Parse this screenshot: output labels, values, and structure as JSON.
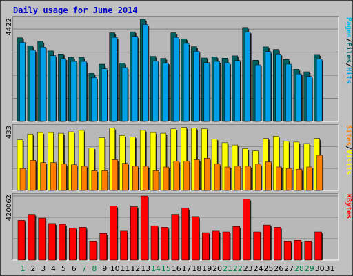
{
  "title": "Daily usage for June 2014",
  "colors": {
    "title": "#0000cc",
    "background": "#c0c0c0",
    "panel": "#b8b8b8",
    "grid": "#808080",
    "hits": "#00a0e8",
    "files": "#006060",
    "pages": "#00c0e0",
    "visits": "#ffff00",
    "sites": "#ff8000",
    "kbytes": "#ff0000",
    "day_normal": "#000000",
    "day_weekend": "#008040"
  },
  "chart_data": [
    {
      "type": "bar",
      "panel": "top",
      "ymax_label": "4422",
      "ylim": [
        0,
        4422
      ],
      "legend": [
        {
          "text": "Pages",
          "color": "#00c0e0"
        },
        {
          "text": "/",
          "color": "#000000"
        },
        {
          "text": "Files",
          "color": "#006060"
        },
        {
          "text": "/",
          "color": "#000000"
        },
        {
          "text": "Hits",
          "color": "#00a0e8"
        }
      ],
      "series": [
        {
          "name": "Hits",
          "values": [
            3420,
            3080,
            3220,
            2850,
            2720,
            2600,
            2600,
            1900,
            2280,
            3640,
            2330,
            3680,
            4200,
            2620,
            2530,
            3640,
            3380,
            3040,
            2550,
            2600,
            2540,
            2640,
            3870,
            2450,
            3030,
            2920,
            2480,
            2060,
            1950,
            2700
          ]
        },
        {
          "name": "Files",
          "values": [
            3620,
            3280,
            3470,
            3050,
            2920,
            2780,
            2780,
            2080,
            2480,
            3840,
            2530,
            3880,
            4422,
            2820,
            2730,
            3840,
            3580,
            3240,
            2750,
            2800,
            2740,
            2840,
            4070,
            2650,
            3230,
            3120,
            2680,
            2260,
            2150,
            2900
          ]
        }
      ]
    },
    {
      "type": "bar",
      "panel": "middle",
      "ymax_label": "433",
      "ylim": [
        0,
        433
      ],
      "legend": [
        {
          "text": "Sites",
          "color": "#ff8000"
        },
        {
          "text": "/",
          "color": "#000000"
        },
        {
          "text": "Visits",
          "color": "#ffff00"
        }
      ],
      "series": [
        {
          "name": "Visits",
          "values": [
            345,
            385,
            395,
            395,
            390,
            400,
            410,
            290,
            360,
            425,
            375,
            365,
            410,
            395,
            390,
            420,
            430,
            425,
            420,
            350,
            325,
            310,
            285,
            270,
            355,
            370,
            335,
            330,
            320,
            355
          ]
        },
        {
          "name": "Sites",
          "values": [
            150,
            205,
            190,
            190,
            180,
            175,
            165,
            135,
            135,
            210,
            185,
            165,
            165,
            135,
            160,
            200,
            200,
            210,
            220,
            180,
            160,
            165,
            165,
            180,
            195,
            160,
            150,
            145,
            160,
            240
          ]
        }
      ]
    },
    {
      "type": "bar",
      "panel": "bottom",
      "ymax_label": "420062",
      "ylim": [
        0,
        420062
      ],
      "legend": [
        {
          "text": "KBytes",
          "color": "#ff0000"
        }
      ],
      "series": [
        {
          "name": "KBytes",
          "values": [
            260000,
            300000,
            275000,
            240000,
            235000,
            210000,
            215000,
            125000,
            175000,
            355000,
            190000,
            350000,
            420062,
            225000,
            215000,
            300000,
            340000,
            285000,
            180000,
            190000,
            185000,
            220000,
            400000,
            185000,
            230000,
            215000,
            125000,
            130000,
            125000,
            185000
          ]
        }
      ]
    }
  ],
  "days": [
    {
      "label": "1",
      "weekend": true
    },
    {
      "label": "2",
      "weekend": false
    },
    {
      "label": "3",
      "weekend": false
    },
    {
      "label": "4",
      "weekend": false
    },
    {
      "label": "5",
      "weekend": false
    },
    {
      "label": "6",
      "weekend": false
    },
    {
      "label": "7",
      "weekend": true
    },
    {
      "label": "8",
      "weekend": true
    },
    {
      "label": "9",
      "weekend": false
    },
    {
      "label": "10",
      "weekend": false
    },
    {
      "label": "11",
      "weekend": false
    },
    {
      "label": "12",
      "weekend": false
    },
    {
      "label": "13",
      "weekend": false
    },
    {
      "label": "14",
      "weekend": true
    },
    {
      "label": "15",
      "weekend": true
    },
    {
      "label": "16",
      "weekend": false
    },
    {
      "label": "17",
      "weekend": false
    },
    {
      "label": "18",
      "weekend": false
    },
    {
      "label": "19",
      "weekend": false
    },
    {
      "label": "20",
      "weekend": false
    },
    {
      "label": "21",
      "weekend": true
    },
    {
      "label": "22",
      "weekend": true
    },
    {
      "label": "23",
      "weekend": false
    },
    {
      "label": "24",
      "weekend": false
    },
    {
      "label": "25",
      "weekend": false
    },
    {
      "label": "26",
      "weekend": false
    },
    {
      "label": "27",
      "weekend": false
    },
    {
      "label": "28",
      "weekend": true
    },
    {
      "label": "29",
      "weekend": true
    },
    {
      "label": "30",
      "weekend": false
    },
    {
      "label": "31",
      "weekend": false
    }
  ]
}
